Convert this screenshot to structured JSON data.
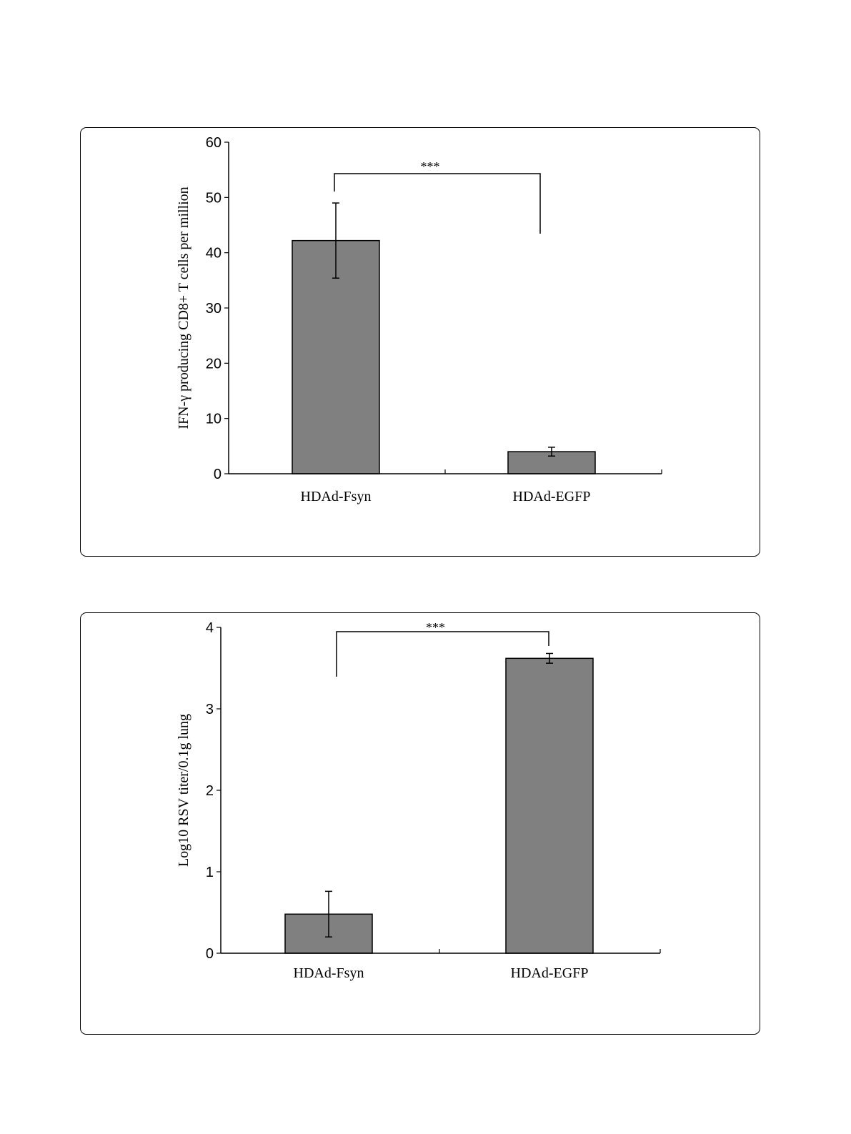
{
  "chart_data": [
    {
      "type": "bar",
      "categories": [
        "HDAd-Fsyn",
        "HDAd-EGFP"
      ],
      "values": [
        42.2,
        4.0
      ],
      "error": [
        6.8,
        0.8
      ],
      "ylabel": "IFN-γ producing CD8+ T cells per million",
      "ylim": [
        0,
        60
      ],
      "yticks": [
        "0",
        "10",
        "20",
        "30",
        "40",
        "50",
        "60"
      ],
      "significance": {
        "label": "***",
        "between": [
          "HDAd-Fsyn",
          "HDAd-EGFP"
        ]
      },
      "bar_color": "#808080",
      "grid": false
    },
    {
      "type": "bar",
      "categories": [
        "HDAd-Fsyn",
        "HDAd-EGFP"
      ],
      "values": [
        0.48,
        3.62
      ],
      "error": [
        0.28,
        0.06
      ],
      "ylabel": "Log10 RSV titer/0.1g lung",
      "ylim": [
        0,
        4
      ],
      "yticks": [
        "0",
        "1",
        "2",
        "3",
        "4"
      ],
      "significance": {
        "label": "***",
        "between": [
          "HDAd-Fsyn",
          "HDAd-EGFP"
        ]
      },
      "bar_color": "#808080",
      "grid": false
    }
  ]
}
